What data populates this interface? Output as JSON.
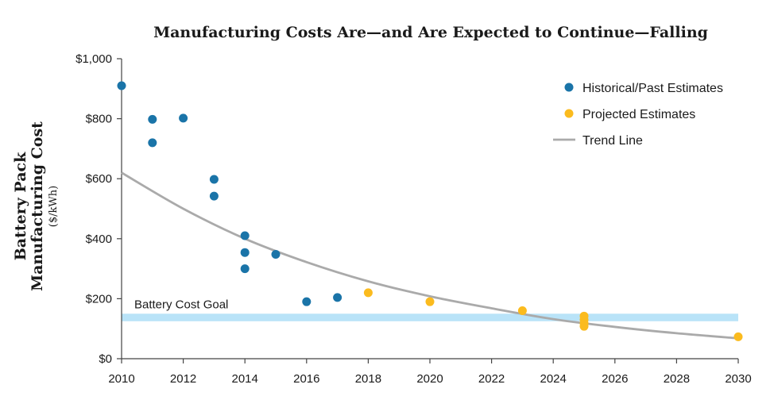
{
  "chart_data": {
    "type": "scatter",
    "title": "Manufacturing Costs Are—and Are Expected to Continue—Falling",
    "ylabel_lines": [
      "Battery Pack",
      "Manufacturing Cost"
    ],
    "ylabel_unit": "($/kWh)",
    "xlabel": "",
    "xlim": [
      2010,
      2030
    ],
    "ylim": [
      0,
      1000
    ],
    "x_ticks": [
      "2010",
      "2012",
      "2014",
      "2016",
      "2018",
      "2020",
      "2022",
      "2024",
      "2026",
      "2028",
      "2030"
    ],
    "y_ticks": [
      "$0",
      "$200",
      "$400",
      "$600",
      "$800",
      "$1,000"
    ],
    "grid": false,
    "legend_position": "top-right",
    "series": [
      {
        "name": "Historical/Past Estimates",
        "color": "#1a74a8",
        "points": [
          [
            2010,
            910
          ],
          [
            2011,
            798
          ],
          [
            2011,
            720
          ],
          [
            2012,
            802
          ],
          [
            2013,
            598
          ],
          [
            2013,
            542
          ],
          [
            2014,
            410
          ],
          [
            2014,
            354
          ],
          [
            2014,
            300
          ],
          [
            2015,
            348
          ],
          [
            2016,
            190
          ],
          [
            2017,
            204
          ]
        ]
      },
      {
        "name": "Projected Estimates",
        "color": "#fbbb1e",
        "points": [
          [
            2018,
            220
          ],
          [
            2020,
            190
          ],
          [
            2023,
            160
          ],
          [
            2025,
            142
          ],
          [
            2025,
            130
          ],
          [
            2025,
            118
          ],
          [
            2025,
            108
          ],
          [
            2030,
            73
          ]
        ]
      }
    ],
    "trend_line": {
      "name": "Trend Line",
      "color": "#aaaaaa",
      "points": [
        [
          2010,
          620
        ],
        [
          2012,
          500
        ],
        [
          2014,
          400
        ],
        [
          2016,
          322
        ],
        [
          2018,
          258
        ],
        [
          2020,
          208
        ],
        [
          2022,
          168
        ],
        [
          2024,
          132
        ],
        [
          2026,
          106
        ],
        [
          2028,
          85
        ],
        [
          2030,
          68
        ]
      ]
    },
    "goal_band": {
      "label": "Battery Cost Goal",
      "color": "#b9e3f8",
      "range": [
        125,
        150
      ]
    }
  }
}
